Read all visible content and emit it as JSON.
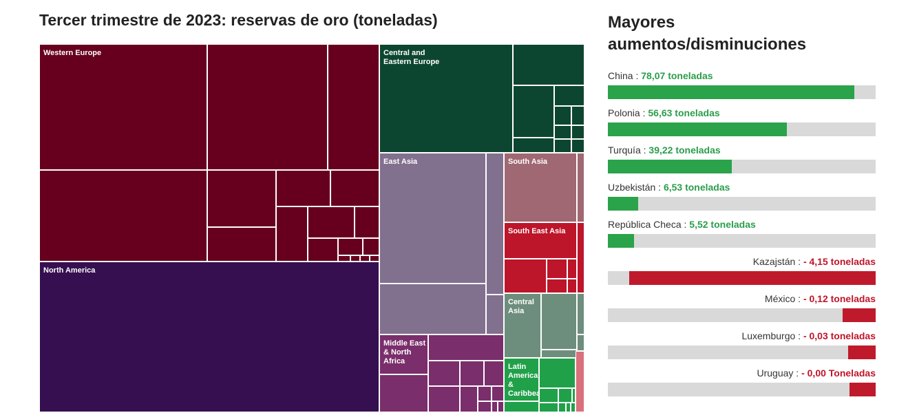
{
  "treemap_title": "Tercer trimestre de 2023: reservas de oro (toneladas)",
  "bars_title": "Mayores aumentos/disminuciones",
  "colors": {
    "western_europe": "#67001f",
    "north_america": "#360f50",
    "central_eastern_europe": "#0d4630",
    "east_asia": "#82708f",
    "south_asia": "#a06872",
    "south_east_asia": "#bd1529",
    "central_asia": "#6e8e7d",
    "middle_east_north_africa": "#7a2e6b",
    "latin_america_caribbean": "#21a04a",
    "increase": "#2aa34a",
    "decrease": "#bf1a2c",
    "track": "#d9d9d9"
  },
  "regions": {
    "western_europe": "Western Europe",
    "north_america": "North America",
    "central_eastern_europe": "Central and Eastern Europe",
    "east_asia": "East Asia",
    "south_asia": "South Asia",
    "south_east_asia": "South East Asia",
    "central_asia": "Central Asia",
    "middle_east_north_africa": "Middle East & North Africa",
    "latin_america_caribbean": "Latin America & Caribbean"
  },
  "chart_data": [
    {
      "type": "treemap",
      "title": "Tercer trimestre de 2023: reservas de oro (toneladas)",
      "categories": [
        "Western Europe",
        "North America",
        "Central and Eastern Europe",
        "East Asia",
        "Middle East & North Africa",
        "South Asia",
        "South East Asia",
        "Central Asia",
        "Latin America & Caribbean"
      ]
    },
    {
      "type": "bar",
      "title": "Mayores aumentos/disminuciones",
      "xlim": [
        -5,
        85
      ],
      "items": [
        {
          "country": "China",
          "value": 78.07,
          "label": "78,07 toneladas",
          "dir": "pos"
        },
        {
          "country": "Polonia",
          "value": 56.63,
          "label": "56,63 toneladas",
          "dir": "pos"
        },
        {
          "country": "Turquía",
          "value": 39.22,
          "label": "39,22 toneladas",
          "dir": "pos"
        },
        {
          "country": "Uzbekistán",
          "value": 6.53,
          "label": "6,53 toneladas",
          "dir": "pos"
        },
        {
          "country": "República Checa",
          "value": 5.52,
          "label": "5,52 toneladas",
          "dir": "pos"
        },
        {
          "country": "Kazajstán",
          "value": -4.15,
          "label": "- 4,15 toneladas",
          "dir": "neg"
        },
        {
          "country": "México",
          "value": -0.12,
          "label": "- 0,12 toneladas",
          "dir": "neg"
        },
        {
          "country": "Luxemburgo",
          "value": -0.03,
          "label": "- 0,03 toneladas",
          "dir": "neg"
        },
        {
          "country": "Uruguay",
          "value": -0.0,
          "label": "- 0,00 Toneladas",
          "dir": "neg"
        }
      ]
    }
  ]
}
